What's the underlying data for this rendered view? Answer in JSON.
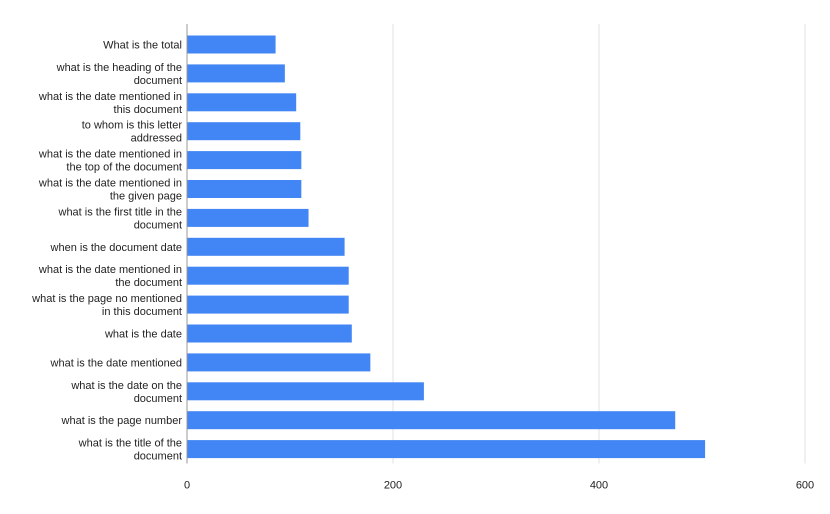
{
  "chart_data": {
    "type": "bar",
    "orientation": "horizontal",
    "categories": [
      "What is the total",
      "what is the heading of the document",
      "what is the date mentioned in this document",
      "to whom is this letter addressed",
      "what is the date mentioned in the top of the document",
      "what is the date mentioned in the given page",
      "what is the first title in the document",
      "when is the document date",
      "what is the date mentioned in the document",
      "what is the page no mentioned in this document",
      "what is the date",
      "what is the date mentioned",
      "what is the date on the document",
      "what is the page number",
      "what is the title of the document"
    ],
    "category_lines": [
      [
        "What is the total"
      ],
      [
        "what is the heading of the",
        "document"
      ],
      [
        "what is the date mentioned in",
        "this document"
      ],
      [
        "to whom is this letter",
        "addressed"
      ],
      [
        "what is the date mentioned in",
        "the top of the document"
      ],
      [
        "what is the date mentioned in",
        "the given page"
      ],
      [
        "what is the first title in the",
        "document"
      ],
      [
        "when is the document date"
      ],
      [
        "what is the date mentioned in",
        "the document"
      ],
      [
        "what is the page no mentioned",
        "in this document"
      ],
      [
        "what is the date"
      ],
      [
        "what is the date mentioned"
      ],
      [
        "what is the date on the",
        "document"
      ],
      [
        "what is the page number"
      ],
      [
        "what is the title of the",
        "document"
      ]
    ],
    "values": [
      86,
      95,
      106,
      110,
      111,
      111,
      118,
      153,
      157,
      157,
      160,
      178,
      230,
      474,
      503
    ],
    "xlim": [
      0,
      600
    ],
    "xticks": [
      0,
      200,
      400,
      600
    ],
    "title": "",
    "xlabel": "",
    "ylabel": "",
    "grid": "vertical",
    "legend": "none",
    "bar_color": "#4285f4",
    "grid_color": "#e0e0e0",
    "axis_color": "#999999"
  }
}
